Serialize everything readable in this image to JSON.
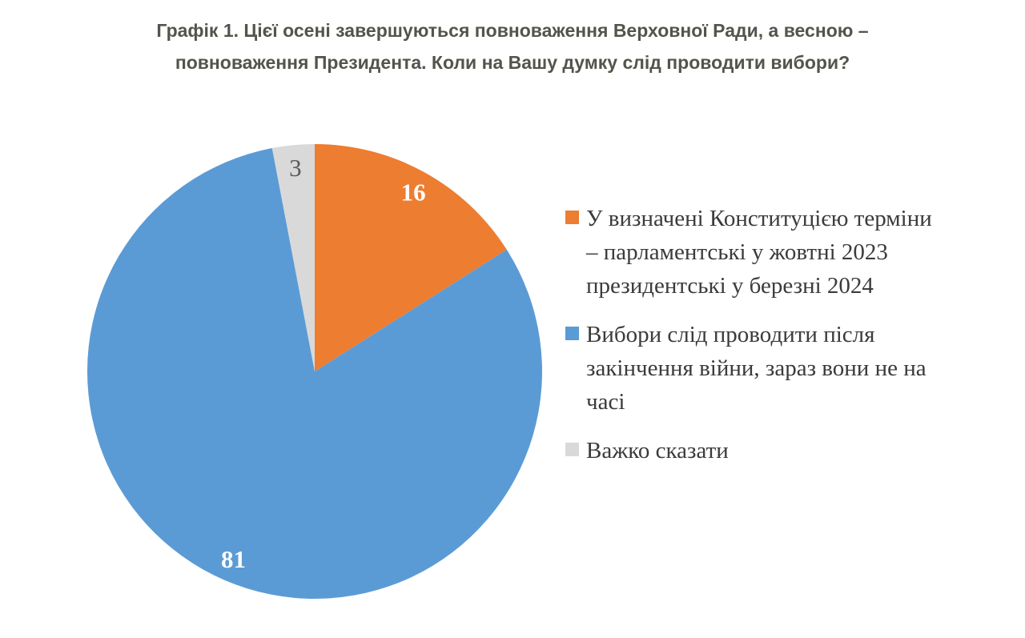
{
  "title": {
    "line1": "Графік 1. Цієї осені завершуються повноваження Верховної Ради, а весною –",
    "line2": "повноваження Президента. Коли на Вашу думку слід проводити вибори?"
  },
  "chart_data": {
    "type": "pie",
    "title": "Графік 1. Цієї осені завершуються повноваження Верховної Ради, а весною – повноваження Президента. Коли на Вашу думку слід проводити вибори?",
    "unit": "percent",
    "start_angle": "top",
    "direction": "clockwise",
    "legend_position": "right",
    "slices": [
      {
        "label": "У визначені Конституцією терміни – парламентські у жовтні 2023 президентські у березні 2024",
        "value": 16,
        "color": "#ED7D31",
        "label_color": "#FFFFFF",
        "label_bold": true
      },
      {
        "label": "Вибори слід проводити після закінчення війни, зараз вони не на часі",
        "value": 81,
        "color": "#5B9BD5",
        "label_color": "#FFFFFF",
        "label_bold": true
      },
      {
        "label": "Важко сказати",
        "value": 3,
        "color": "#D9D9D9",
        "label_color": "#595959",
        "label_bold": false
      }
    ]
  },
  "legend": {
    "items": [
      {
        "color": "#ED7D31",
        "lines": [
          "У визначені Конституцією терміни",
          "– парламентські у жовтні 2023",
          "президентські у березні 2024"
        ]
      },
      {
        "color": "#5B9BD5",
        "lines": [
          "Вибори слід проводити після",
          "закінчення війни, зараз вони не на",
          "часі"
        ]
      },
      {
        "color": "#D9D9D9",
        "lines": [
          "Важко сказати"
        ]
      }
    ]
  }
}
